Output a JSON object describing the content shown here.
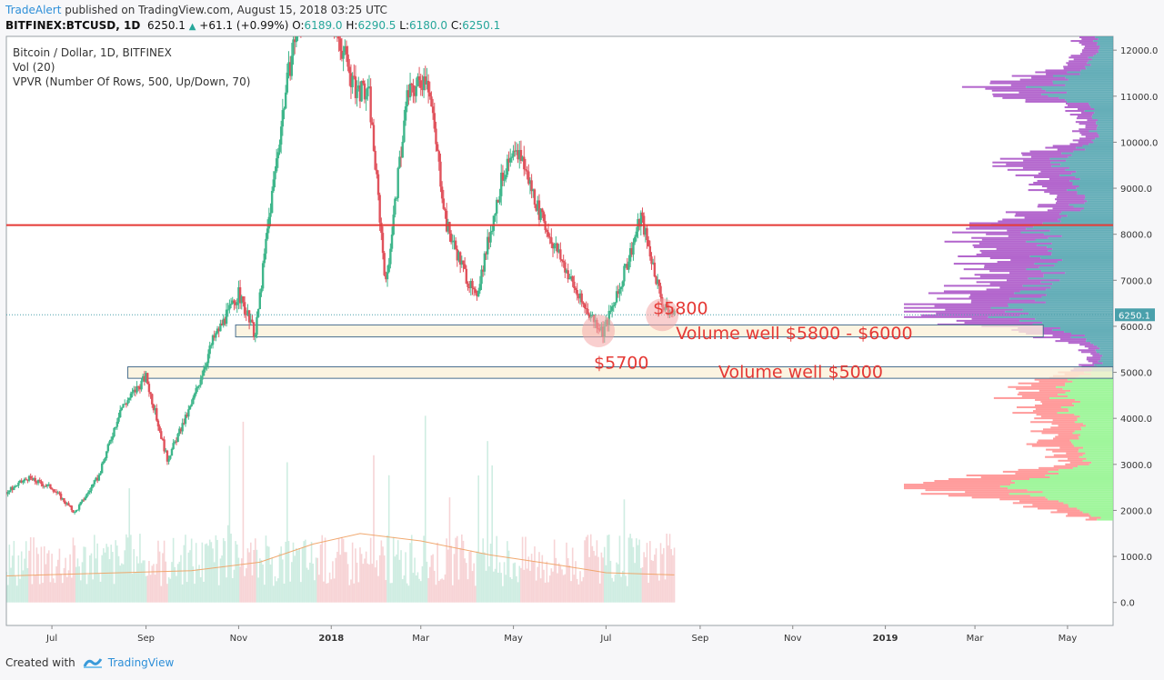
{
  "header": {
    "author": "TradeAlert",
    "published": " published on TradingView.com, August 15, 2018 03:25 UTC",
    "symbol": "BITFINEX:BTCUSD, 1D",
    "last": "6250.1",
    "change": "+61.1 (+0.99%)",
    "o_label": "O:",
    "o": "6189.0",
    "h_label": "H:",
    "h": "6290.5",
    "l_label": "L:",
    "l": "6180.0",
    "c_label": "C:",
    "c": "6250.1"
  },
  "legend": {
    "title": "Bitcoin / Dollar, 1D, BITFINEX",
    "vol": "Vol (20)",
    "vpvr": "VPVR (Number Of Rows, 500, Up/Down, 70)"
  },
  "footer": {
    "created": "Created with",
    "brand": "TradingView"
  },
  "colors": {
    "up": "#3fb68b",
    "down": "#e0525c",
    "resistance": "#e53935",
    "annotation": "#e53935",
    "vp_purple": "#a64bc4",
    "vp_teal": "#4aa0ab",
    "vp_pink": "#ff8a8a",
    "vp_green": "#8ef58a",
    "zone_fill": "#fbf1da",
    "zone_border": "#4a6f8f",
    "ma": "#f0a060",
    "price_tag": "#4aa0ab"
  },
  "chart_data": {
    "type": "candlestick",
    "y_ticks": [
      "12000.0",
      "11000.0",
      "10000.0",
      "9000.0",
      "8000.0",
      "7000.0",
      "6000.0",
      "5000.0",
      "4000.0",
      "3000.0",
      "2000.0",
      "1000.0",
      "0.0"
    ],
    "x_ticks": [
      "Jul",
      "Sep",
      "Nov",
      "2018",
      "Mar",
      "May",
      "Jul",
      "Sep",
      "Nov",
      "2019",
      "Mar",
      "May"
    ],
    "x_range": [
      "2017-06-01",
      "2019-05-31"
    ],
    "y_range": [
      -500,
      12300
    ],
    "last_price_label": "6250.1",
    "price_path": [
      [
        "2017-06-01",
        2400
      ],
      [
        "2017-06-15",
        2700
      ],
      [
        "2017-07-01",
        2500
      ],
      [
        "2017-07-16",
        1950
      ],
      [
        "2017-08-01",
        2750
      ],
      [
        "2017-08-15",
        4200
      ],
      [
        "2017-09-01",
        4900
      ],
      [
        "2017-09-15",
        3100
      ],
      [
        "2017-10-01",
        4300
      ],
      [
        "2017-10-15",
        5700
      ],
      [
        "2017-11-01",
        6700
      ],
      [
        "2017-11-12",
        5800
      ],
      [
        "2017-11-20",
        8100
      ],
      [
        "2017-12-01",
        10900
      ],
      [
        "2017-12-08",
        12300
      ],
      [
        "2017-12-22",
        13500
      ],
      [
        "2018-01-06",
        12300
      ],
      [
        "2018-01-16",
        11200
      ],
      [
        "2018-01-26",
        11000
      ],
      [
        "2018-02-06",
        6900
      ],
      [
        "2018-02-20",
        11000
      ],
      [
        "2018-03-05",
        11500
      ],
      [
        "2018-03-18",
        8200
      ],
      [
        "2018-04-01",
        7000
      ],
      [
        "2018-04-06",
        6600
      ],
      [
        "2018-04-24",
        9300
      ],
      [
        "2018-05-05",
        9800
      ],
      [
        "2018-05-20",
        8300
      ],
      [
        "2018-06-01",
        7500
      ],
      [
        "2018-06-15",
        6500
      ],
      [
        "2018-06-29",
        5900
      ],
      [
        "2018-07-09",
        6700
      ],
      [
        "2018-07-24",
        8400
      ],
      [
        "2018-08-08",
        6400
      ],
      [
        "2018-08-15",
        6250
      ]
    ],
    "volume_ma": [
      [
        "2017-06-01",
        0.25
      ],
      [
        "2017-08-15",
        0.28
      ],
      [
        "2017-10-01",
        0.3
      ],
      [
        "2017-11-15",
        0.38
      ],
      [
        "2017-12-20",
        0.55
      ],
      [
        "2018-01-20",
        0.65
      ],
      [
        "2018-03-01",
        0.58
      ],
      [
        "2018-04-15",
        0.45
      ],
      [
        "2018-06-01",
        0.35
      ],
      [
        "2018-07-01",
        0.28
      ],
      [
        "2018-08-15",
        0.26
      ]
    ],
    "resistance_line": 8200,
    "zones": [
      {
        "from": 5770,
        "to": 6030,
        "x_start": "2017-10-30",
        "x_end": "2019-04-15"
      },
      {
        "from": 4870,
        "to": 5120,
        "x_start": "2017-08-20",
        "x_end": "2019-05-31"
      }
    ],
    "annotations": [
      {
        "text": "$5800",
        "price": 6270,
        "date": "2018-08-01"
      },
      {
        "text": "Volume well $5800 - $6000",
        "price": 5720,
        "date": "2018-08-16"
      },
      {
        "text": "$5700",
        "price": 5080,
        "date": "2018-06-23"
      },
      {
        "text": "Volume well $5000",
        "price": 4880,
        "date": "2018-09-13"
      }
    ],
    "circles": [
      {
        "date": "2018-06-26",
        "price": 5900
      },
      {
        "date": "2018-08-07",
        "price": 6250
      }
    ]
  }
}
